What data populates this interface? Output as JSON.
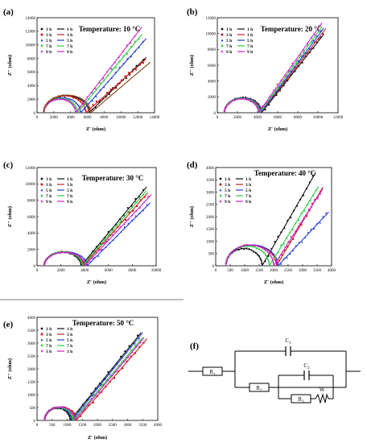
{
  "figure": {
    "panel_labels": [
      "(a)",
      "(b)",
      "(c)",
      "(d)",
      "(e)",
      "(f)"
    ]
  },
  "colors": {
    "series": [
      "#111111",
      "#cc2222",
      "#1f3fd6",
      "#2ecc40",
      "#cc22cc"
    ],
    "extra_a": "#8b4513"
  },
  "chart_data": [
    {
      "panel": "(a)",
      "type": "scatter",
      "title": "Temperature: 10 °C",
      "xlabel": "Z' (ohm)",
      "ylabel": "Z'' (ohm)",
      "xlim": [
        0,
        14000
      ],
      "ylim": [
        0,
        14000
      ],
      "xticks": [
        0,
        2000,
        4000,
        6000,
        8000,
        10000,
        12000,
        14000
      ],
      "yticks": [
        0,
        2000,
        4000,
        6000,
        8000,
        10000,
        12000,
        14000
      ],
      "legend": "top-left",
      "legend_labels": [
        "1 h",
        "3 h",
        "5 h",
        "7 h",
        "9 h"
      ],
      "series": [
        {
          "name": "1 h",
          "x0": 800,
          "Rct": 5400,
          "hmax": 2500,
          "slope": 1.2,
          "xmax": 13000,
          "noise": 250
        },
        {
          "name": "3 h",
          "x0": 800,
          "Rct": 5000,
          "hmax": 2500,
          "slope": 1.1,
          "xmax": 13000,
          "noise": 250
        },
        {
          "name": "5 h",
          "x0": 800,
          "Rct": 4400,
          "hmax": 2200,
          "slope": 1.4,
          "xmax": 13000,
          "noise": 250
        },
        {
          "name": "7 h",
          "x0": 800,
          "Rct": 4000,
          "hmax": 2100,
          "slope": 1.5,
          "xmax": 12500,
          "noise": 250
        },
        {
          "name": "9 h",
          "x0": 800,
          "Rct": 3800,
          "hmax": 2000,
          "slope": 1.6,
          "xmax": 12500,
          "noise": 250
        },
        {
          "name": "",
          "x0": 800,
          "Rct": 5600,
          "hmax": 2600,
          "slope": 1.05,
          "xmax": 13500,
          "noise": 0
        }
      ]
    },
    {
      "panel": "(b)",
      "type": "scatter",
      "title": "Temperature: 20 °C",
      "xlabel": "Z' (ohm)",
      "ylabel": "Z'' (ohm)",
      "xlim": [
        0,
        12000
      ],
      "ylim": [
        0,
        12000
      ],
      "xticks": [
        0,
        2000,
        4000,
        6000,
        8000,
        10000,
        12000
      ],
      "yticks": [
        0,
        2000,
        4000,
        6000,
        8000,
        10000,
        12000
      ],
      "legend": "top-left",
      "legend_labels": [
        "1 h",
        "3 h",
        "5 h",
        "7 h",
        "9 h"
      ],
      "series": [
        {
          "name": "1 h",
          "x0": 700,
          "Rct": 3700,
          "hmax": 1900,
          "slope": 1.6,
          "xmax": 10600,
          "noise": 220
        },
        {
          "name": "3 h",
          "x0": 700,
          "Rct": 3650,
          "hmax": 1850,
          "slope": 1.65,
          "xmax": 10800,
          "noise": 220
        },
        {
          "name": "5 h",
          "x0": 700,
          "Rct": 3600,
          "hmax": 1850,
          "slope": 1.7,
          "xmax": 10600,
          "noise": 220
        },
        {
          "name": "7 h",
          "x0": 700,
          "Rct": 3500,
          "hmax": 1800,
          "slope": 1.75,
          "xmax": 10400,
          "noise": 220
        },
        {
          "name": "9 h",
          "x0": 700,
          "Rct": 3400,
          "hmax": 1750,
          "slope": 1.8,
          "xmax": 10400,
          "noise": 220
        }
      ]
    },
    {
      "panel": "(c)",
      "type": "scatter",
      "title": "Temperature: 30 °C",
      "xlabel": "Z' (ohm)",
      "ylabel": "Z'' (ohm)",
      "xlim": [
        0,
        10000
      ],
      "ylim": [
        0,
        12000
      ],
      "xticks": [
        0,
        2000,
        4000,
        6000,
        8000,
        10000
      ],
      "yticks": [
        0,
        2000,
        4000,
        6000,
        8000,
        10000,
        12000
      ],
      "legend": "top-left",
      "legend_labels": [
        "1 h",
        "3 h",
        "5 h",
        "7 h",
        "9 h"
      ],
      "series": [
        {
          "name": "1 h",
          "x0": 600,
          "Rct": 3100,
          "hmax": 1650,
          "slope": 1.75,
          "xmax": 9200,
          "noise": 200
        },
        {
          "name": "3 h",
          "x0": 600,
          "Rct": 3300,
          "hmax": 1700,
          "slope": 1.65,
          "xmax": 9300,
          "noise": 200
        },
        {
          "name": "5 h",
          "x0": 600,
          "Rct": 3600,
          "hmax": 1700,
          "slope": 1.45,
          "xmax": 9500,
          "noise": 200
        },
        {
          "name": "7 h",
          "x0": 600,
          "Rct": 3200,
          "hmax": 1700,
          "slope": 1.7,
          "xmax": 9200,
          "noise": 200
        },
        {
          "name": "9 h",
          "x0": 600,
          "Rct": 3400,
          "hmax": 1650,
          "slope": 1.55,
          "xmax": 9600,
          "noise": 200
        }
      ]
    },
    {
      "panel": "(d)",
      "type": "scatter",
      "title": "Temperature: 40 °C",
      "xlabel": "Z' (ohm)",
      "ylabel": "Z'' (ohm)",
      "xlim": [
        0,
        4000
      ],
      "ylim": [
        0,
        4000
      ],
      "xticks": [
        0,
        500,
        1000,
        1500,
        2000,
        2500,
        3000,
        3500,
        4000
      ],
      "yticks": [
        0,
        500,
        1000,
        1500,
        2000,
        2500,
        3000,
        3500,
        4000
      ],
      "legend": "top-left",
      "legend_labels": [
        "1 h",
        "3 h",
        "5 h",
        "7 h",
        "9 h"
      ],
      "series": [
        {
          "name": "1 h",
          "x0": 350,
          "Rct": 1250,
          "hmax": 700,
          "slope": 2.05,
          "xmax": 3450,
          "noise": 70
        },
        {
          "name": "3 h",
          "x0": 350,
          "Rct": 1750,
          "hmax": 850,
          "slope": 2.0,
          "xmax": 3700,
          "noise": 70
        },
        {
          "name": "5 h",
          "x0": 350,
          "Rct": 1800,
          "hmax": 850,
          "slope": 1.25,
          "xmax": 3900,
          "noise": 70
        },
        {
          "name": "7 h",
          "x0": 350,
          "Rct": 1500,
          "hmax": 800,
          "slope": 1.9,
          "xmax": 3550,
          "noise": 70
        },
        {
          "name": "9 h",
          "x0": 350,
          "Rct": 1650,
          "hmax": 850,
          "slope": 1.85,
          "xmax": 3700,
          "noise": 70
        }
      ]
    },
    {
      "panel": "(e)",
      "type": "scatter",
      "title": "Temperature: 50 °C",
      "xlabel": "Z' (ohm)",
      "ylabel": "Z'' (ohm)",
      "xlim": [
        0,
        4000
      ],
      "ylim": [
        0,
        4000
      ],
      "xticks": [
        0,
        500,
        1000,
        1500,
        2000,
        2500,
        3000,
        3500,
        4000
      ],
      "yticks": [
        0,
        500,
        1000,
        1500,
        2000,
        2500,
        3000,
        3500,
        4000
      ],
      "legend": "top-left",
      "legend_labels": [
        "1 h",
        "3 h",
        "5 h",
        "7 h",
        "3 h"
      ],
      "series": [
        {
          "name": "1 h",
          "x0": 250,
          "Rct": 850,
          "hmax": 480,
          "slope": 1.45,
          "xmax": 3450,
          "noise": 60
        },
        {
          "name": "3 h",
          "x0": 250,
          "Rct": 1050,
          "hmax": 520,
          "slope": 1.35,
          "xmax": 3650,
          "noise": 60
        },
        {
          "name": "5 h",
          "x0": 250,
          "Rct": 900,
          "hmax": 500,
          "slope": 1.45,
          "xmax": 3500,
          "noise": 60
        },
        {
          "name": "7 h",
          "x0": 250,
          "Rct": 950,
          "hmax": 500,
          "slope": 1.4,
          "xmax": 3500,
          "noise": 60
        },
        {
          "name": "3 h",
          "x0": 250,
          "Rct": 1000,
          "hmax": 520,
          "slope": 1.4,
          "xmax": 3550,
          "noise": 60
        }
      ]
    }
  ],
  "circuit": {
    "labels": [
      "R",
      "C",
      "R",
      "C",
      "R",
      "W"
    ],
    "subscripts": [
      "1",
      "1",
      "2",
      "2",
      "3",
      ""
    ]
  }
}
